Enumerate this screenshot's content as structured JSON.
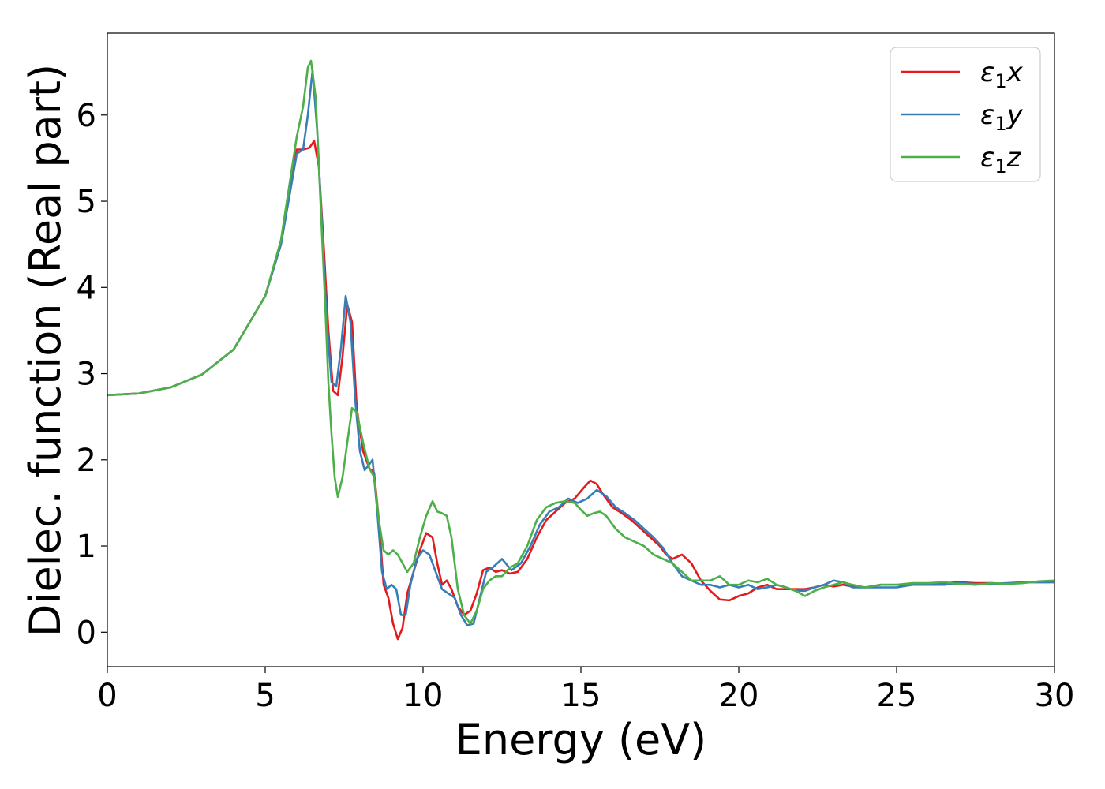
{
  "chart_data": {
    "type": "line",
    "xlabel": "Energy (eV)",
    "ylabel": "Dielec. function (Real part)",
    "xlim": [
      0,
      30
    ],
    "ylim": [
      -0.4,
      6.95
    ],
    "xticks": [
      0,
      5,
      10,
      15,
      20,
      25,
      30
    ],
    "yticks": [
      0,
      1,
      2,
      3,
      4,
      5,
      6
    ],
    "grid": false,
    "legend_position": "top-right",
    "series": [
      {
        "name": "ε1x",
        "legend_base": "ε",
        "legend_sub": "1",
        "legend_suffix": "x",
        "color": "#e41a1c",
        "x": [
          0,
          1,
          2,
          3,
          4,
          5,
          5.5,
          6,
          6.2,
          6.4,
          6.55,
          6.7,
          6.85,
          7.0,
          7.15,
          7.3,
          7.45,
          7.6,
          7.75,
          7.9,
          8.1,
          8.3,
          8.45,
          8.6,
          8.75,
          8.9,
          9.05,
          9.2,
          9.35,
          9.5,
          9.7,
          9.9,
          10.1,
          10.3,
          10.45,
          10.6,
          10.75,
          10.9,
          11.1,
          11.3,
          11.5,
          11.7,
          11.9,
          12.1,
          12.3,
          12.5,
          12.75,
          13.0,
          13.3,
          13.6,
          13.9,
          14.2,
          14.5,
          14.8,
          15.1,
          15.3,
          15.5,
          15.7,
          16.0,
          16.3,
          16.6,
          16.9,
          17.2,
          17.5,
          17.7,
          17.9,
          18.2,
          18.5,
          18.8,
          19.1,
          19.4,
          19.7,
          20.0,
          20.3,
          20.6,
          20.9,
          21.2,
          21.5,
          21.8,
          22.1,
          22.4,
          22.7,
          23.0,
          23.3,
          23.6,
          24.0,
          24.5,
          25.0,
          25.5,
          26.0,
          26.5,
          27.0,
          27.5,
          28.0,
          28.5,
          29.0,
          29.5,
          30.0
        ],
        "y": [
          2.75,
          2.77,
          2.84,
          2.99,
          3.28,
          3.9,
          4.5,
          5.6,
          5.6,
          5.62,
          5.7,
          5.4,
          4.5,
          3.5,
          2.8,
          2.75,
          3.2,
          3.8,
          3.6,
          2.6,
          2.1,
          1.9,
          1.85,
          1.3,
          0.55,
          0.4,
          0.1,
          -0.08,
          0.05,
          0.45,
          0.7,
          0.95,
          1.15,
          1.1,
          0.8,
          0.55,
          0.6,
          0.5,
          0.3,
          0.2,
          0.25,
          0.45,
          0.72,
          0.75,
          0.7,
          0.72,
          0.68,
          0.7,
          0.85,
          1.1,
          1.3,
          1.4,
          1.5,
          1.55,
          1.68,
          1.76,
          1.72,
          1.6,
          1.45,
          1.38,
          1.3,
          1.2,
          1.1,
          1.0,
          0.9,
          0.85,
          0.9,
          0.8,
          0.6,
          0.48,
          0.38,
          0.37,
          0.42,
          0.45,
          0.52,
          0.55,
          0.5,
          0.5,
          0.5,
          0.5,
          0.52,
          0.55,
          0.53,
          0.55,
          0.53,
          0.52,
          0.55,
          0.55,
          0.55,
          0.56,
          0.57,
          0.58,
          0.57,
          0.57,
          0.56,
          0.58,
          0.58,
          0.58
        ]
      },
      {
        "name": "ε1y",
        "legend_base": "ε",
        "legend_sub": "1",
        "legend_suffix": "y",
        "color": "#377eb8",
        "x": [
          0,
          1,
          2,
          3,
          4,
          5,
          5.5,
          6,
          6.2,
          6.35,
          6.5,
          6.65,
          6.8,
          6.95,
          7.1,
          7.25,
          7.4,
          7.55,
          7.7,
          7.85,
          8.0,
          8.15,
          8.3,
          8.4,
          8.55,
          8.7,
          8.85,
          9.0,
          9.15,
          9.3,
          9.45,
          9.6,
          9.8,
          10.0,
          10.2,
          10.4,
          10.6,
          10.8,
          11.0,
          11.2,
          11.4,
          11.6,
          11.8,
          12.0,
          12.2,
          12.5,
          12.8,
          13.1,
          13.4,
          13.7,
          14.0,
          14.3,
          14.6,
          14.9,
          15.2,
          15.5,
          15.8,
          16.1,
          16.4,
          16.7,
          17.0,
          17.3,
          17.6,
          17.9,
          18.2,
          18.5,
          18.8,
          19.1,
          19.4,
          19.7,
          20.0,
          20.3,
          20.6,
          20.9,
          21.2,
          21.5,
          21.8,
          22.1,
          22.4,
          22.7,
          23.0,
          23.3,
          23.6,
          24.0,
          24.5,
          25.0,
          25.5,
          26.0,
          26.5,
          27.0,
          27.5,
          28.0,
          28.5,
          29.0,
          29.5,
          30.0
        ],
        "y": [
          2.75,
          2.77,
          2.84,
          2.99,
          3.28,
          3.9,
          4.5,
          5.55,
          5.6,
          6.0,
          6.52,
          5.8,
          4.7,
          3.6,
          2.9,
          2.85,
          3.3,
          3.9,
          3.6,
          2.7,
          2.1,
          1.88,
          1.95,
          2.0,
          1.4,
          0.7,
          0.5,
          0.55,
          0.5,
          0.2,
          0.2,
          0.55,
          0.85,
          0.95,
          0.9,
          0.7,
          0.5,
          0.45,
          0.4,
          0.2,
          0.08,
          0.1,
          0.4,
          0.7,
          0.75,
          0.85,
          0.72,
          0.8,
          1.0,
          1.25,
          1.4,
          1.45,
          1.55,
          1.5,
          1.55,
          1.65,
          1.58,
          1.45,
          1.38,
          1.3,
          1.2,
          1.1,
          0.98,
          0.8,
          0.65,
          0.6,
          0.55,
          0.55,
          0.52,
          0.55,
          0.52,
          0.55,
          0.5,
          0.52,
          0.55,
          0.52,
          0.48,
          0.48,
          0.52,
          0.55,
          0.6,
          0.58,
          0.52,
          0.52,
          0.52,
          0.52,
          0.55,
          0.55,
          0.55,
          0.57,
          0.56,
          0.56,
          0.57,
          0.58,
          0.58,
          0.58
        ]
      },
      {
        "name": "ε1z",
        "legend_base": "ε",
        "legend_sub": "1",
        "legend_suffix": "z",
        "color": "#4daf4a",
        "x": [
          0,
          1,
          2,
          3,
          4,
          5,
          5.5,
          6,
          6.2,
          6.35,
          6.45,
          6.6,
          6.75,
          6.9,
          7.0,
          7.1,
          7.2,
          7.3,
          7.45,
          7.6,
          7.75,
          7.9,
          8.1,
          8.3,
          8.45,
          8.6,
          8.75,
          8.9,
          9.05,
          9.2,
          9.35,
          9.5,
          9.7,
          9.9,
          10.1,
          10.3,
          10.45,
          10.6,
          10.75,
          10.9,
          11.1,
          11.3,
          11.5,
          11.7,
          11.9,
          12.1,
          12.3,
          12.5,
          12.75,
          13.0,
          13.3,
          13.6,
          13.9,
          14.2,
          14.5,
          14.8,
          15.0,
          15.2,
          15.4,
          15.6,
          15.8,
          16.1,
          16.4,
          16.7,
          17.0,
          17.3,
          17.6,
          17.9,
          18.2,
          18.5,
          18.8,
          19.1,
          19.4,
          19.7,
          20.0,
          20.3,
          20.6,
          20.9,
          21.2,
          21.5,
          21.8,
          22.1,
          22.4,
          22.7,
          23.0,
          23.3,
          23.6,
          24.0,
          24.5,
          25.0,
          25.5,
          26.0,
          26.5,
          27.0,
          27.5,
          28.0,
          28.5,
          29.0,
          29.5,
          30.0
        ],
        "y": [
          2.75,
          2.77,
          2.84,
          2.99,
          3.28,
          3.9,
          4.55,
          5.75,
          6.1,
          6.55,
          6.63,
          6.2,
          5.0,
          3.8,
          2.9,
          2.3,
          1.8,
          1.57,
          1.8,
          2.2,
          2.6,
          2.55,
          2.2,
          1.9,
          1.8,
          1.3,
          0.95,
          0.9,
          0.95,
          0.9,
          0.8,
          0.7,
          0.8,
          1.1,
          1.35,
          1.52,
          1.4,
          1.38,
          1.35,
          1.1,
          0.5,
          0.2,
          0.1,
          0.25,
          0.5,
          0.6,
          0.65,
          0.65,
          0.75,
          0.8,
          1.0,
          1.3,
          1.45,
          1.5,
          1.52,
          1.5,
          1.42,
          1.35,
          1.38,
          1.4,
          1.35,
          1.2,
          1.1,
          1.05,
          1.0,
          0.9,
          0.85,
          0.8,
          0.7,
          0.6,
          0.6,
          0.6,
          0.65,
          0.55,
          0.55,
          0.6,
          0.58,
          0.62,
          0.55,
          0.52,
          0.48,
          0.42,
          0.48,
          0.52,
          0.55,
          0.58,
          0.55,
          0.52,
          0.55,
          0.55,
          0.57,
          0.57,
          0.58,
          0.56,
          0.55,
          0.57,
          0.56,
          0.57,
          0.59,
          0.6
        ]
      }
    ]
  }
}
